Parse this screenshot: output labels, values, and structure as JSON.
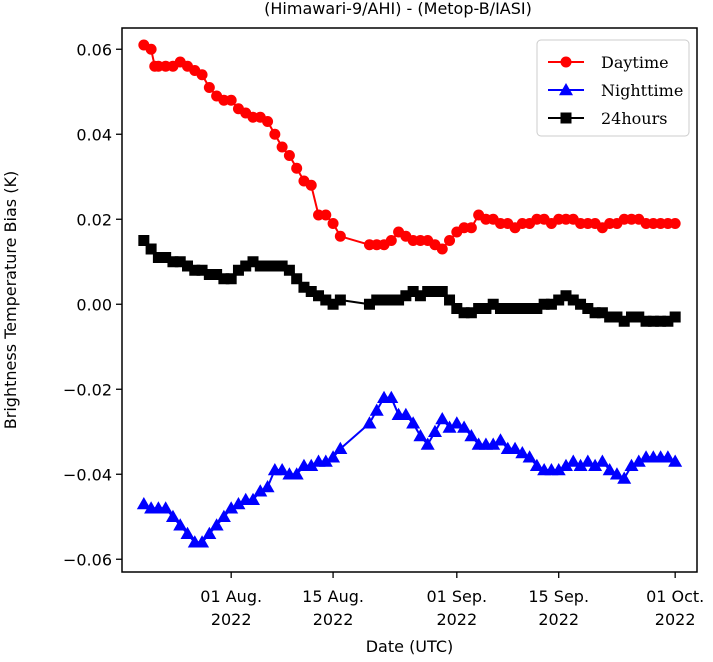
{
  "chart_data": {
    "type": "line",
    "title": "(Himawari-9/AHI) - (Metop-B/IASI)",
    "xlabel": "Date (UTC)",
    "ylabel": "Brightness Temperature Bias (K)",
    "xlim": [
      -15,
      64
    ],
    "ylim": [
      -0.063,
      0.065
    ],
    "x_ticks": [
      {
        "value": 0,
        "line1": "01 Aug.",
        "line2": "2022"
      },
      {
        "value": 14,
        "line1": "15 Aug.",
        "line2": "2022"
      },
      {
        "value": 31,
        "line1": "01 Sep.",
        "line2": "2022"
      },
      {
        "value": 45,
        "line1": "15 Sep.",
        "line2": "2022"
      },
      {
        "value": 61,
        "line1": "01 Oct.",
        "line2": "2022"
      }
    ],
    "y_ticks": [
      {
        "value": 0.06,
        "label": "0.06"
      },
      {
        "value": 0.04,
        "label": "0.04"
      },
      {
        "value": 0.02,
        "label": "0.02"
      },
      {
        "value": 0.0,
        "label": "0.00"
      },
      {
        "value": -0.02,
        "label": "−0.02"
      },
      {
        "value": -0.04,
        "label": "−0.04"
      },
      {
        "value": -0.06,
        "label": "−0.06"
      }
    ],
    "legend_position": "top-right",
    "series": [
      {
        "name": "Daytime",
        "color": "#ff0000",
        "marker": "circle",
        "x": [
          -12,
          -11,
          -10.5,
          -10,
          -9,
          -8,
          -7,
          -6,
          -5,
          -4,
          -3,
          -2,
          -1,
          0,
          1,
          2,
          3,
          4,
          5,
          6,
          7,
          8,
          9,
          10,
          11,
          12,
          13,
          14,
          15,
          19,
          20,
          21,
          22,
          23,
          24,
          25,
          26,
          27,
          28,
          29,
          30,
          31,
          32,
          33,
          34,
          35,
          36,
          37,
          38,
          39,
          40,
          41,
          42,
          43,
          44,
          45,
          46,
          47,
          48,
          49,
          50,
          51,
          52,
          53,
          54,
          55,
          56,
          57,
          58,
          59,
          60,
          61
        ],
        "y": [
          0.061,
          0.06,
          0.056,
          0.056,
          0.056,
          0.056,
          0.057,
          0.056,
          0.055,
          0.054,
          0.051,
          0.049,
          0.048,
          0.048,
          0.046,
          0.045,
          0.044,
          0.044,
          0.043,
          0.04,
          0.037,
          0.035,
          0.032,
          0.029,
          0.028,
          0.021,
          0.021,
          0.019,
          0.016,
          0.014,
          0.014,
          0.014,
          0.015,
          0.017,
          0.016,
          0.015,
          0.015,
          0.015,
          0.014,
          0.013,
          0.015,
          0.017,
          0.018,
          0.018,
          0.021,
          0.02,
          0.02,
          0.019,
          0.019,
          0.018,
          0.019,
          0.019,
          0.02,
          0.02,
          0.019,
          0.02,
          0.02,
          0.02,
          0.019,
          0.019,
          0.019,
          0.018,
          0.019,
          0.019,
          0.02,
          0.02,
          0.02,
          0.019,
          0.019,
          0.019,
          0.019,
          0.019
        ]
      },
      {
        "name": "Nighttime",
        "color": "#0000ff",
        "marker": "triangle",
        "x": [
          -12,
          -11,
          -10,
          -9,
          -8,
          -7,
          -6,
          -5,
          -4,
          -3,
          -2,
          -1,
          0,
          1,
          2,
          3,
          4,
          5,
          6,
          7,
          8,
          9,
          10,
          11,
          12,
          13,
          14,
          15,
          19,
          20,
          21,
          22,
          23,
          24,
          25,
          26,
          27,
          28,
          29,
          30,
          31,
          32,
          33,
          34,
          35,
          36,
          37,
          38,
          39,
          40,
          41,
          42,
          43,
          44,
          45,
          46,
          47,
          48,
          49,
          50,
          51,
          52,
          53,
          54,
          55,
          56,
          57,
          58,
          59,
          60,
          61
        ],
        "y": [
          -0.047,
          -0.048,
          -0.048,
          -0.048,
          -0.05,
          -0.052,
          -0.054,
          -0.056,
          -0.056,
          -0.054,
          -0.052,
          -0.05,
          -0.048,
          -0.047,
          -0.046,
          -0.046,
          -0.044,
          -0.043,
          -0.039,
          -0.039,
          -0.04,
          -0.04,
          -0.038,
          -0.038,
          -0.037,
          -0.037,
          -0.036,
          -0.034,
          -0.028,
          -0.025,
          -0.022,
          -0.022,
          -0.026,
          -0.026,
          -0.028,
          -0.031,
          -0.033,
          -0.03,
          -0.027,
          -0.029,
          -0.028,
          -0.029,
          -0.031,
          -0.033,
          -0.033,
          -0.033,
          -0.032,
          -0.034,
          -0.034,
          -0.035,
          -0.036,
          -0.038,
          -0.039,
          -0.039,
          -0.039,
          -0.038,
          -0.037,
          -0.038,
          -0.037,
          -0.038,
          -0.037,
          -0.039,
          -0.04,
          -0.041,
          -0.038,
          -0.037,
          -0.036,
          -0.036,
          -0.036,
          -0.036,
          -0.037
        ]
      },
      {
        "name": "24hours",
        "color": "#000000",
        "marker": "square",
        "x": [
          -12,
          -11,
          -10,
          -9,
          -8,
          -7,
          -6,
          -5,
          -4,
          -3,
          -2,
          -1,
          0,
          1,
          2,
          3,
          4,
          5,
          6,
          7,
          8,
          9,
          10,
          11,
          12,
          13,
          14,
          15,
          19,
          20,
          21,
          22,
          23,
          24,
          25,
          26,
          27,
          28,
          29,
          30,
          31,
          32,
          33,
          34,
          35,
          36,
          37,
          38,
          39,
          40,
          41,
          42,
          43,
          44,
          45,
          46,
          47,
          48,
          49,
          50,
          51,
          52,
          53,
          54,
          55,
          56,
          57,
          58,
          59,
          60,
          61
        ],
        "y": [
          0.015,
          0.013,
          0.011,
          0.011,
          0.01,
          0.01,
          0.009,
          0.008,
          0.008,
          0.007,
          0.007,
          0.006,
          0.006,
          0.008,
          0.009,
          0.01,
          0.009,
          0.009,
          0.009,
          0.009,
          0.008,
          0.006,
          0.004,
          0.003,
          0.002,
          0.001,
          0.0,
          0.001,
          0.0,
          0.001,
          0.001,
          0.001,
          0.001,
          0.002,
          0.003,
          0.002,
          0.003,
          0.003,
          0.003,
          0.001,
          -0.001,
          -0.002,
          -0.002,
          -0.001,
          -0.001,
          0.0,
          -0.001,
          -0.001,
          -0.001,
          -0.001,
          -0.001,
          -0.001,
          0.0,
          0.0,
          0.001,
          0.002,
          0.001,
          0.0,
          -0.001,
          -0.002,
          -0.002,
          -0.003,
          -0.003,
          -0.004,
          -0.003,
          -0.003,
          -0.004,
          -0.004,
          -0.004,
          -0.004,
          -0.003
        ]
      }
    ]
  }
}
